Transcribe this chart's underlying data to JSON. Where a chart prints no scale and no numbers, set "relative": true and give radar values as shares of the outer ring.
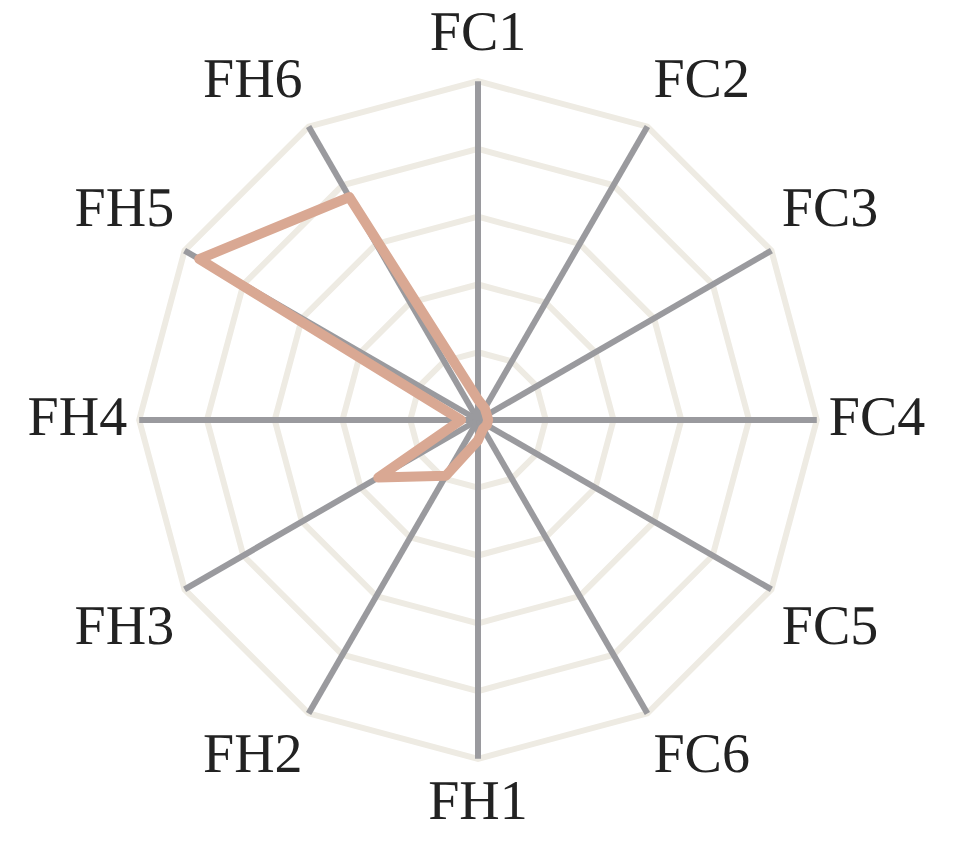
{
  "chart_data": {
    "type": "radar",
    "relative": true,
    "grid": true,
    "legend": false,
    "marker": "none",
    "categories": [
      "FC1",
      "FC2",
      "FC3",
      "FC4",
      "FC5",
      "FC6",
      "FH1",
      "FH2",
      "FH3",
      "FH4",
      "FH5",
      "FH6"
    ],
    "series": [
      {
        "color": "#d9a893",
        "values": [
          0.06,
          0.04,
          0.03,
          0.03,
          0.03,
          0.03,
          0.06,
          0.19,
          0.34,
          0.05,
          0.95,
          0.76
        ]
      }
    ]
  }
}
